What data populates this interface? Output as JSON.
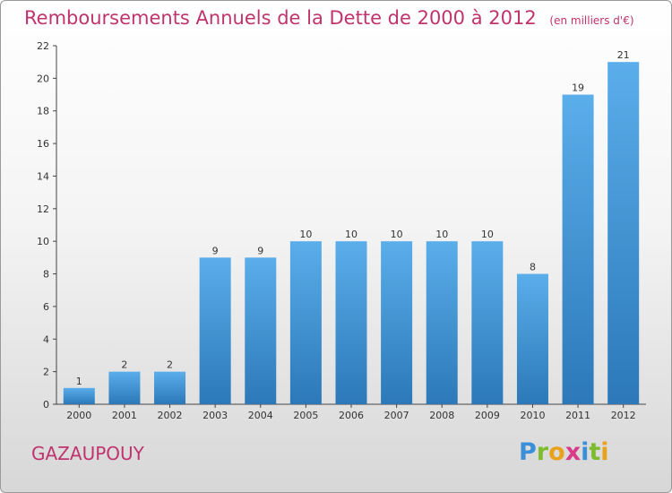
{
  "chart_data": {
    "type": "bar",
    "title": "Remboursements Annuels de la Dette de 2000 à 2012",
    "unit": "(en milliers d'€)",
    "categories": [
      "2000",
      "2001",
      "2002",
      "2003",
      "2004",
      "2005",
      "2006",
      "2007",
      "2008",
      "2009",
      "2010",
      "2011",
      "2012"
    ],
    "values": [
      1,
      2,
      2,
      9,
      9,
      10,
      10,
      10,
      10,
      10,
      8,
      19,
      21
    ],
    "ylim": [
      0,
      22
    ],
    "yticks": [
      0,
      2,
      4,
      6,
      8,
      10,
      12,
      14,
      16,
      18,
      20,
      22
    ],
    "xlabel": "",
    "ylabel": "",
    "grid": false,
    "bar_color": "#4c9fde"
  },
  "place": "GAZAUPOUY",
  "logo": {
    "letters": [
      "P",
      "r",
      "o",
      "x",
      "i",
      "t",
      "i"
    ],
    "colors": [
      "#3b8fd9",
      "#7dbb2f",
      "#e8a21b",
      "#d93a8a",
      "#3b8fd9",
      "#7dbb2f",
      "#e8a21b"
    ]
  }
}
